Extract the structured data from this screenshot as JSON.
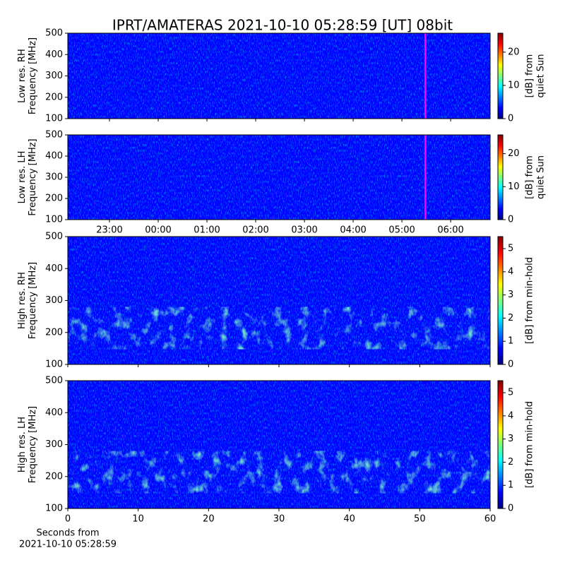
{
  "chart_data": [
    {
      "type": "heatmap",
      "title": "IPRT/AMATERAS 2021-10-10 05:28:59 [UT]   08bit",
      "ylabel": [
        "Low res. RH",
        "Frequency [MHz]"
      ],
      "ylim": [
        100,
        500
      ],
      "yticks": [
        100,
        200,
        300,
        400,
        500
      ],
      "xlim": [
        22.145,
        30.81
      ],
      "xticks": [
        23,
        24,
        25,
        26,
        27,
        28,
        29,
        30
      ],
      "marker_x": 29.48,
      "marker_color": "#ff00ff",
      "colorbar": {
        "label": [
          "[dB] from",
          "quiet Sun"
        ],
        "lim": [
          0,
          25.7
        ],
        "ticks": [
          0,
          10,
          20
        ]
      },
      "colormap": [
        "#00007f",
        "#0000ff",
        "#007fff",
        "#00ffff",
        "#7fff7f",
        "#ffff00",
        "#ff7f00",
        "#ff0000",
        "#7f0000"
      ]
    },
    {
      "type": "heatmap",
      "ylabel": [
        "Low res. LH",
        "Frequency [MHz]"
      ],
      "ylim": [
        100,
        500
      ],
      "yticks": [
        100,
        200,
        300,
        400,
        500
      ],
      "xlim": [
        22.145,
        30.81
      ],
      "xticks": [
        {
          "value": 23,
          "label": "23:00"
        },
        {
          "value": 24,
          "label": "00:00"
        },
        {
          "value": 25,
          "label": "01:00"
        },
        {
          "value": 26,
          "label": "02:00"
        },
        {
          "value": 27,
          "label": "03:00"
        },
        {
          "value": 28,
          "label": "04:00"
        },
        {
          "value": 29,
          "label": "05:00"
        },
        {
          "value": 30,
          "label": "06:00"
        }
      ],
      "marker_x": 29.48,
      "marker_color": "#ff00ff",
      "colorbar": {
        "label": [
          "[dB] from",
          "quiet Sun"
        ],
        "lim": [
          0,
          25.7
        ],
        "ticks": [
          0,
          10,
          20
        ]
      },
      "colormap": [
        "#00007f",
        "#0000ff",
        "#007fff",
        "#00ffff",
        "#7fff7f",
        "#ffff00",
        "#ff7f00",
        "#ff0000",
        "#7f0000"
      ]
    },
    {
      "type": "heatmap",
      "ylabel": [
        "High res. RH",
        "Frequency [MHz]"
      ],
      "ylim": [
        100,
        500
      ],
      "yticks": [
        100,
        200,
        300,
        400,
        500
      ],
      "xlim": [
        0,
        60
      ],
      "xticks": [
        0,
        10,
        20,
        30,
        40,
        50,
        60
      ],
      "colorbar": {
        "label": [
          "[dB] from min-hold"
        ],
        "lim": [
          0,
          5.52
        ],
        "ticks": [
          0,
          1,
          2,
          3,
          4,
          5
        ]
      },
      "colormap": [
        "#00007f",
        "#0000ff",
        "#007fff",
        "#00ffff",
        "#7fff7f",
        "#ffff00",
        "#ff7f00",
        "#ff0000",
        "#7f0000"
      ]
    },
    {
      "type": "heatmap",
      "ylabel": [
        "High res. LH",
        "Frequency [MHz]"
      ],
      "ylim": [
        100,
        500
      ],
      "yticks": [
        100,
        200,
        300,
        400,
        500
      ],
      "xlim": [
        0,
        60
      ],
      "xticks": [
        0,
        10,
        20,
        30,
        40,
        50,
        60
      ],
      "xlabel": [
        "Seconds from",
        "2021-10-10 05:28:59"
      ],
      "colorbar": {
        "label": [
          "[dB] from min-hold"
        ],
        "lim": [
          0,
          5.52
        ],
        "ticks": [
          0,
          1,
          2,
          3,
          4,
          5
        ]
      },
      "colormap": [
        "#00007f",
        "#0000ff",
        "#007fff",
        "#00ffff",
        "#7fff7f",
        "#ffff00",
        "#ff7f00",
        "#ff0000",
        "#7f0000"
      ]
    }
  ]
}
